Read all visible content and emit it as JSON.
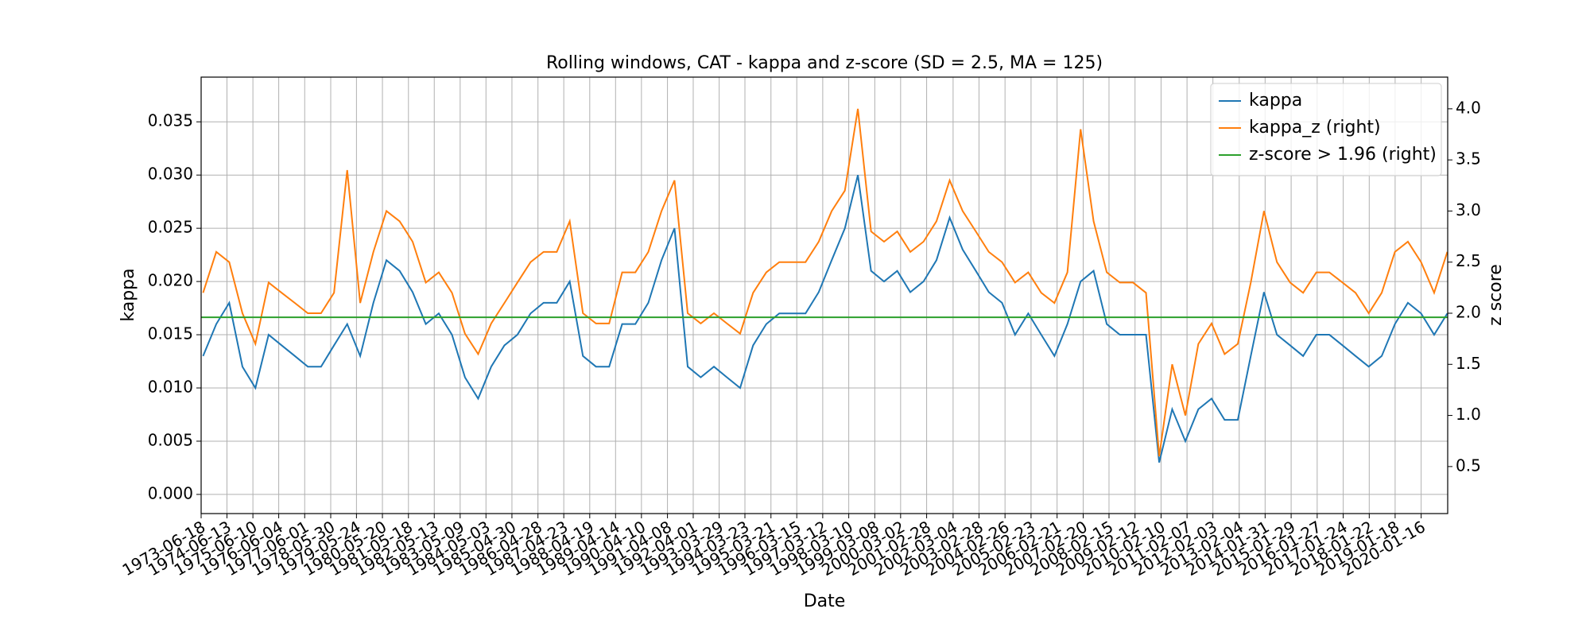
{
  "chart_data": {
    "type": "line",
    "title": "Rolling windows, CAT - kappa and z-score (SD = 2.5, MA = 125)",
    "x_label": "Date",
    "y_label": "kappa",
    "y2_label": "z score",
    "grid": true,
    "legend": "upper right",
    "xlim": [
      "1973-06-18",
      "2021-01-20"
    ],
    "xticks": [
      "1973-06-18",
      "1974-06-13",
      "1975-06-10",
      "1976-06-04",
      "1977-06-01",
      "1978-05-30",
      "1979-05-24",
      "1980-05-20",
      "1981-05-18",
      "1982-05-13",
      "1983-05-09",
      "1984-05-03",
      "1985-04-30",
      "1986-04-28",
      "1987-04-23",
      "1988-04-19",
      "1989-04-14",
      "1990-04-10",
      "1991-04-08",
      "1992-04-01",
      "1993-03-29",
      "1994-03-23",
      "1995-03-21",
      "1996-03-15",
      "1997-03-12",
      "1998-03-10",
      "1999-03-08",
      "2000-03-02",
      "2001-02-28",
      "2002-03-04",
      "2003-02-28",
      "2004-02-26",
      "2005-02-23",
      "2006-02-21",
      "2007-02-20",
      "2008-02-15",
      "2009-02-12",
      "2010-02-10",
      "2011-02-07",
      "2012-02-03",
      "2013-02-04",
      "2014-01-31",
      "2015-01-29",
      "2016-01-27",
      "2017-01-24",
      "2018-01-22",
      "2019-01-18",
      "2020-01-16"
    ],
    "ylim": [
      -0.0018,
      0.0392
    ],
    "yticks": [
      {
        "value": 0,
        "label": "0.000"
      },
      {
        "value": 0.005,
        "label": "0.005"
      },
      {
        "value": 0.01,
        "label": "0.010"
      },
      {
        "value": 0.015,
        "label": "0.015"
      },
      {
        "value": 0.02,
        "label": "0.020"
      },
      {
        "value": 0.025,
        "label": "0.025"
      },
      {
        "value": 0.03,
        "label": "0.030"
      },
      {
        "value": 0.035,
        "label": "0.035"
      }
    ],
    "y2lim": [
      0.04,
      4.31
    ],
    "y2ticks": [
      0.5,
      {
        "value": 1,
        "label": "1.0"
      },
      1.5,
      {
        "value": 2,
        "label": "2.0"
      },
      2.5,
      {
        "value": 3,
        "label": "3.0"
      },
      3.5,
      {
        "value": 4,
        "label": "4.0"
      }
    ],
    "x": [
      "1973-07-15",
      "1974-01-15",
      "1974-07-15",
      "1975-01-15",
      "1975-07-15",
      "1976-01-15",
      "1976-07-15",
      "1977-01-15",
      "1977-07-15",
      "1978-01-15",
      "1978-07-15",
      "1979-01-15",
      "1979-07-15",
      "1980-01-15",
      "1980-07-15",
      "1981-01-15",
      "1981-07-15",
      "1982-01-15",
      "1982-07-15",
      "1983-01-15",
      "1983-07-15",
      "1984-01-15",
      "1984-07-15",
      "1985-01-15",
      "1985-07-15",
      "1986-01-15",
      "1986-07-15",
      "1987-01-15",
      "1987-07-15",
      "1988-01-15",
      "1988-07-15",
      "1989-01-15",
      "1989-07-15",
      "1990-01-15",
      "1990-07-15",
      "1991-01-15",
      "1991-07-15",
      "1992-01-15",
      "1992-07-15",
      "1993-01-15",
      "1993-07-15",
      "1994-01-15",
      "1994-07-15",
      "1995-01-15",
      "1995-07-15",
      "1996-01-15",
      "1996-07-15",
      "1997-01-15",
      "1997-07-15",
      "1998-01-15",
      "1998-07-15",
      "1999-01-15",
      "1999-07-15",
      "2000-01-15",
      "2000-07-15",
      "2001-01-15",
      "2001-07-15",
      "2002-01-15",
      "2002-07-15",
      "2003-01-15",
      "2003-07-15",
      "2004-01-15",
      "2004-07-15",
      "2005-01-15",
      "2005-07-15",
      "2006-01-15",
      "2006-07-15",
      "2007-01-15",
      "2007-07-15",
      "2008-01-15",
      "2008-07-15",
      "2009-01-15",
      "2009-07-15",
      "2010-01-15",
      "2010-07-15",
      "2011-01-15",
      "2011-07-15",
      "2012-01-15",
      "2012-07-15",
      "2013-01-15",
      "2013-07-15",
      "2014-01-15",
      "2014-07-15",
      "2015-01-15",
      "2015-07-15",
      "2016-01-15",
      "2016-07-15",
      "2017-01-15",
      "2017-07-15",
      "2018-01-15",
      "2018-07-15",
      "2019-01-15",
      "2019-07-15",
      "2020-01-15",
      "2020-07-15",
      "2021-01-15"
    ],
    "series": [
      {
        "name": "kappa",
        "color": "#1f77b4",
        "axis": "y",
        "values": [
          0.013,
          0.016,
          0.018,
          0.012,
          0.01,
          0.015,
          0.014,
          0.013,
          0.012,
          0.012,
          0.014,
          0.016,
          0.013,
          0.018,
          0.022,
          0.021,
          0.019,
          0.016,
          0.017,
          0.015,
          0.011,
          0.009,
          0.012,
          0.014,
          0.015,
          0.017,
          0.018,
          0.018,
          0.02,
          0.013,
          0.012,
          0.012,
          0.016,
          0.016,
          0.018,
          0.022,
          0.025,
          0.012,
          0.011,
          0.012,
          0.011,
          0.01,
          0.014,
          0.016,
          0.017,
          0.017,
          0.017,
          0.019,
          0.022,
          0.025,
          0.03,
          0.021,
          0.02,
          0.021,
          0.019,
          0.02,
          0.022,
          0.026,
          0.023,
          0.021,
          0.019,
          0.018,
          0.015,
          0.017,
          0.015,
          0.013,
          0.016,
          0.02,
          0.021,
          0.016,
          0.015,
          0.015,
          0.015,
          0.003,
          0.008,
          0.005,
          0.008,
          0.009,
          0.007,
          0.007,
          0.013,
          0.019,
          0.015,
          0.014,
          0.013,
          0.015,
          0.015,
          0.014,
          0.013,
          0.012,
          0.013,
          0.016,
          0.018,
          0.017,
          0.015,
          0.017
        ]
      },
      {
        "name": "kappa_z (right)",
        "color": "#ff7f0e",
        "axis": "y2",
        "values": [
          2.2,
          2.6,
          2.5,
          2.0,
          1.7,
          2.3,
          2.2,
          2.1,
          2.0,
          2.0,
          2.2,
          3.4,
          2.1,
          2.6,
          3.0,
          2.9,
          2.7,
          2.3,
          2.4,
          2.2,
          1.8,
          1.6,
          1.9,
          2.1,
          2.3,
          2.5,
          2.6,
          2.6,
          2.9,
          2.0,
          1.9,
          1.9,
          2.4,
          2.4,
          2.6,
          3.0,
          3.3,
          2.0,
          1.9,
          2.0,
          1.9,
          1.8,
          2.2,
          2.4,
          2.5,
          2.5,
          2.5,
          2.7,
          3.0,
          3.2,
          4.0,
          2.8,
          2.7,
          2.8,
          2.6,
          2.7,
          2.9,
          3.3,
          3.0,
          2.8,
          2.6,
          2.5,
          2.3,
          2.4,
          2.2,
          2.1,
          2.4,
          3.8,
          2.9,
          2.4,
          2.3,
          2.3,
          2.2,
          0.6,
          1.5,
          1.0,
          1.7,
          1.9,
          1.6,
          1.7,
          2.3,
          3.0,
          2.5,
          2.3,
          2.2,
          2.4,
          2.4,
          2.3,
          2.2,
          2.0,
          2.2,
          2.6,
          2.7,
          2.5,
          2.2,
          2.6
        ]
      },
      {
        "name": "z-score > 1.96 (right)",
        "color": "#2ca02c",
        "axis": "y2",
        "value": 1.96
      }
    ]
  }
}
